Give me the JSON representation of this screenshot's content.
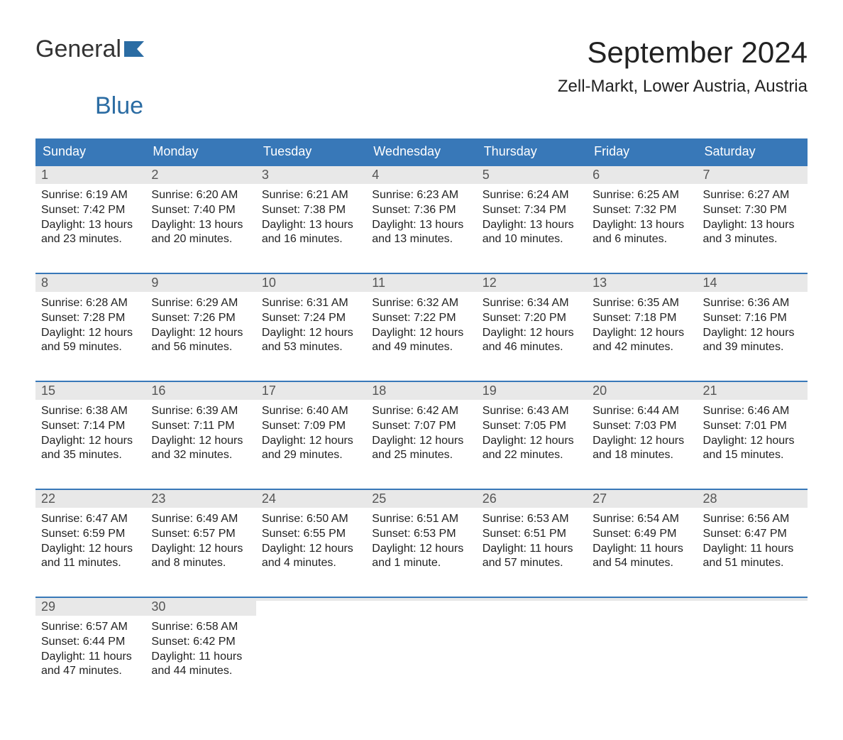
{
  "logo": {
    "text_general": "General",
    "text_blue": "Blue",
    "color_general": "#333333",
    "color_blue": "#2b6ca3",
    "icon_color": "#2b6ca3"
  },
  "title": "September 2024",
  "location": "Zell-Markt, Lower Austria, Austria",
  "colors": {
    "header_bg": "#3878b8",
    "header_text": "#ffffff",
    "week_border": "#3878b8",
    "daynum_bg": "#e8e8e8",
    "daynum_text": "#555555",
    "body_text": "#222222",
    "page_bg": "#ffffff"
  },
  "typography": {
    "title_fontsize": 42,
    "location_fontsize": 24,
    "header_fontsize": 18,
    "daynum_fontsize": 18,
    "body_fontsize": 16,
    "logo_fontsize": 34
  },
  "day_headers": [
    "Sunday",
    "Monday",
    "Tuesday",
    "Wednesday",
    "Thursday",
    "Friday",
    "Saturday"
  ],
  "weeks": [
    [
      {
        "num": "1",
        "sunrise": "Sunrise: 6:19 AM",
        "sunset": "Sunset: 7:42 PM",
        "daylight1": "Daylight: 13 hours",
        "daylight2": "and 23 minutes."
      },
      {
        "num": "2",
        "sunrise": "Sunrise: 6:20 AM",
        "sunset": "Sunset: 7:40 PM",
        "daylight1": "Daylight: 13 hours",
        "daylight2": "and 20 minutes."
      },
      {
        "num": "3",
        "sunrise": "Sunrise: 6:21 AM",
        "sunset": "Sunset: 7:38 PM",
        "daylight1": "Daylight: 13 hours",
        "daylight2": "and 16 minutes."
      },
      {
        "num": "4",
        "sunrise": "Sunrise: 6:23 AM",
        "sunset": "Sunset: 7:36 PM",
        "daylight1": "Daylight: 13 hours",
        "daylight2": "and 13 minutes."
      },
      {
        "num": "5",
        "sunrise": "Sunrise: 6:24 AM",
        "sunset": "Sunset: 7:34 PM",
        "daylight1": "Daylight: 13 hours",
        "daylight2": "and 10 minutes."
      },
      {
        "num": "6",
        "sunrise": "Sunrise: 6:25 AM",
        "sunset": "Sunset: 7:32 PM",
        "daylight1": "Daylight: 13 hours",
        "daylight2": "and 6 minutes."
      },
      {
        "num": "7",
        "sunrise": "Sunrise: 6:27 AM",
        "sunset": "Sunset: 7:30 PM",
        "daylight1": "Daylight: 13 hours",
        "daylight2": "and 3 minutes."
      }
    ],
    [
      {
        "num": "8",
        "sunrise": "Sunrise: 6:28 AM",
        "sunset": "Sunset: 7:28 PM",
        "daylight1": "Daylight: 12 hours",
        "daylight2": "and 59 minutes."
      },
      {
        "num": "9",
        "sunrise": "Sunrise: 6:29 AM",
        "sunset": "Sunset: 7:26 PM",
        "daylight1": "Daylight: 12 hours",
        "daylight2": "and 56 minutes."
      },
      {
        "num": "10",
        "sunrise": "Sunrise: 6:31 AM",
        "sunset": "Sunset: 7:24 PM",
        "daylight1": "Daylight: 12 hours",
        "daylight2": "and 53 minutes."
      },
      {
        "num": "11",
        "sunrise": "Sunrise: 6:32 AM",
        "sunset": "Sunset: 7:22 PM",
        "daylight1": "Daylight: 12 hours",
        "daylight2": "and 49 minutes."
      },
      {
        "num": "12",
        "sunrise": "Sunrise: 6:34 AM",
        "sunset": "Sunset: 7:20 PM",
        "daylight1": "Daylight: 12 hours",
        "daylight2": "and 46 minutes."
      },
      {
        "num": "13",
        "sunrise": "Sunrise: 6:35 AM",
        "sunset": "Sunset: 7:18 PM",
        "daylight1": "Daylight: 12 hours",
        "daylight2": "and 42 minutes."
      },
      {
        "num": "14",
        "sunrise": "Sunrise: 6:36 AM",
        "sunset": "Sunset: 7:16 PM",
        "daylight1": "Daylight: 12 hours",
        "daylight2": "and 39 minutes."
      }
    ],
    [
      {
        "num": "15",
        "sunrise": "Sunrise: 6:38 AM",
        "sunset": "Sunset: 7:14 PM",
        "daylight1": "Daylight: 12 hours",
        "daylight2": "and 35 minutes."
      },
      {
        "num": "16",
        "sunrise": "Sunrise: 6:39 AM",
        "sunset": "Sunset: 7:11 PM",
        "daylight1": "Daylight: 12 hours",
        "daylight2": "and 32 minutes."
      },
      {
        "num": "17",
        "sunrise": "Sunrise: 6:40 AM",
        "sunset": "Sunset: 7:09 PM",
        "daylight1": "Daylight: 12 hours",
        "daylight2": "and 29 minutes."
      },
      {
        "num": "18",
        "sunrise": "Sunrise: 6:42 AM",
        "sunset": "Sunset: 7:07 PM",
        "daylight1": "Daylight: 12 hours",
        "daylight2": "and 25 minutes."
      },
      {
        "num": "19",
        "sunrise": "Sunrise: 6:43 AM",
        "sunset": "Sunset: 7:05 PM",
        "daylight1": "Daylight: 12 hours",
        "daylight2": "and 22 minutes."
      },
      {
        "num": "20",
        "sunrise": "Sunrise: 6:44 AM",
        "sunset": "Sunset: 7:03 PM",
        "daylight1": "Daylight: 12 hours",
        "daylight2": "and 18 minutes."
      },
      {
        "num": "21",
        "sunrise": "Sunrise: 6:46 AM",
        "sunset": "Sunset: 7:01 PM",
        "daylight1": "Daylight: 12 hours",
        "daylight2": "and 15 minutes."
      }
    ],
    [
      {
        "num": "22",
        "sunrise": "Sunrise: 6:47 AM",
        "sunset": "Sunset: 6:59 PM",
        "daylight1": "Daylight: 12 hours",
        "daylight2": "and 11 minutes."
      },
      {
        "num": "23",
        "sunrise": "Sunrise: 6:49 AM",
        "sunset": "Sunset: 6:57 PM",
        "daylight1": "Daylight: 12 hours",
        "daylight2": "and 8 minutes."
      },
      {
        "num": "24",
        "sunrise": "Sunrise: 6:50 AM",
        "sunset": "Sunset: 6:55 PM",
        "daylight1": "Daylight: 12 hours",
        "daylight2": "and 4 minutes."
      },
      {
        "num": "25",
        "sunrise": "Sunrise: 6:51 AM",
        "sunset": "Sunset: 6:53 PM",
        "daylight1": "Daylight: 12 hours",
        "daylight2": "and 1 minute."
      },
      {
        "num": "26",
        "sunrise": "Sunrise: 6:53 AM",
        "sunset": "Sunset: 6:51 PM",
        "daylight1": "Daylight: 11 hours",
        "daylight2": "and 57 minutes."
      },
      {
        "num": "27",
        "sunrise": "Sunrise: 6:54 AM",
        "sunset": "Sunset: 6:49 PM",
        "daylight1": "Daylight: 11 hours",
        "daylight2": "and 54 minutes."
      },
      {
        "num": "28",
        "sunrise": "Sunrise: 6:56 AM",
        "sunset": "Sunset: 6:47 PM",
        "daylight1": "Daylight: 11 hours",
        "daylight2": "and 51 minutes."
      }
    ],
    [
      {
        "num": "29",
        "sunrise": "Sunrise: 6:57 AM",
        "sunset": "Sunset: 6:44 PM",
        "daylight1": "Daylight: 11 hours",
        "daylight2": "and 47 minutes."
      },
      {
        "num": "30",
        "sunrise": "Sunrise: 6:58 AM",
        "sunset": "Sunset: 6:42 PM",
        "daylight1": "Daylight: 11 hours",
        "daylight2": "and 44 minutes."
      },
      {
        "num": "",
        "sunrise": "",
        "sunset": "",
        "daylight1": "",
        "daylight2": ""
      },
      {
        "num": "",
        "sunrise": "",
        "sunset": "",
        "daylight1": "",
        "daylight2": ""
      },
      {
        "num": "",
        "sunrise": "",
        "sunset": "",
        "daylight1": "",
        "daylight2": ""
      },
      {
        "num": "",
        "sunrise": "",
        "sunset": "",
        "daylight1": "",
        "daylight2": ""
      },
      {
        "num": "",
        "sunrise": "",
        "sunset": "",
        "daylight1": "",
        "daylight2": ""
      }
    ]
  ]
}
